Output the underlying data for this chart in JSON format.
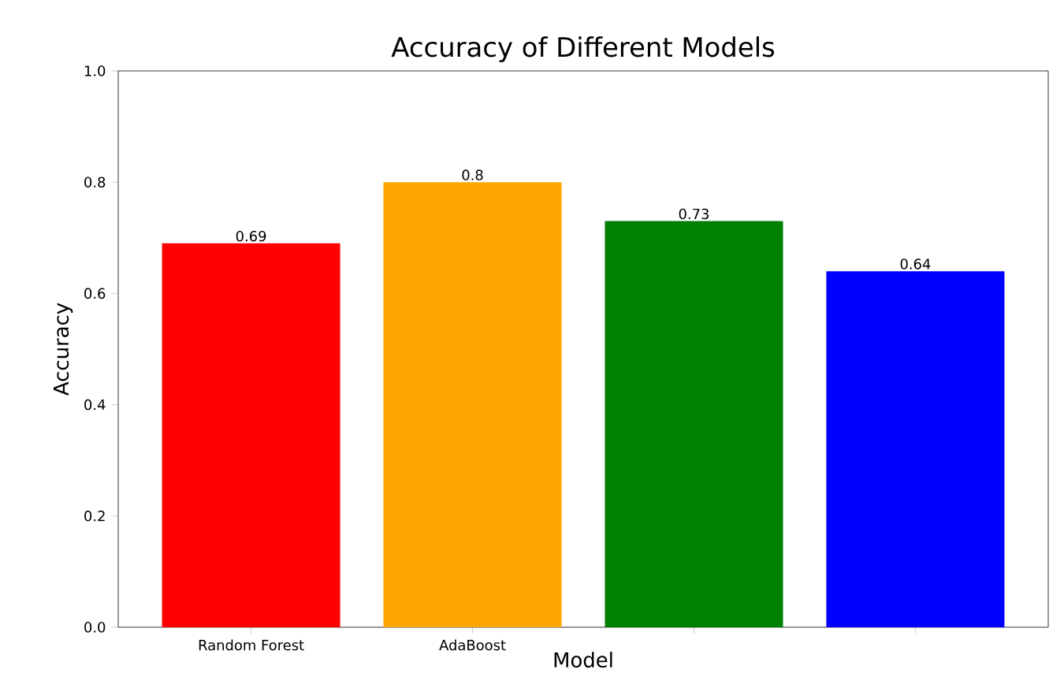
{
  "chart_data": {
    "type": "bar",
    "title": "Accuracy of Different Models",
    "xlabel": "Model",
    "ylabel": "Accuracy",
    "categories": [
      "Random Forest",
      "AdaBoost",
      null,
      null
    ],
    "values": [
      0.69,
      0.8,
      0.73,
      0.64
    ],
    "colors": [
      "#ff0000",
      "#ffa500",
      "#008000",
      "#0000ff"
    ],
    "ylim": [
      0,
      1
    ],
    "yticks": [
      {
        "value": 0,
        "label": "0.0"
      },
      {
        "value": 0.2,
        "label": "0.2"
      },
      {
        "value": 0.4,
        "label": "0.4"
      },
      {
        "value": 0.6,
        "label": "0.6"
      },
      {
        "value": 0.8,
        "label": "0.8"
      },
      {
        "value": 1,
        "label": "1.0"
      }
    ],
    "data_labels": true
  }
}
